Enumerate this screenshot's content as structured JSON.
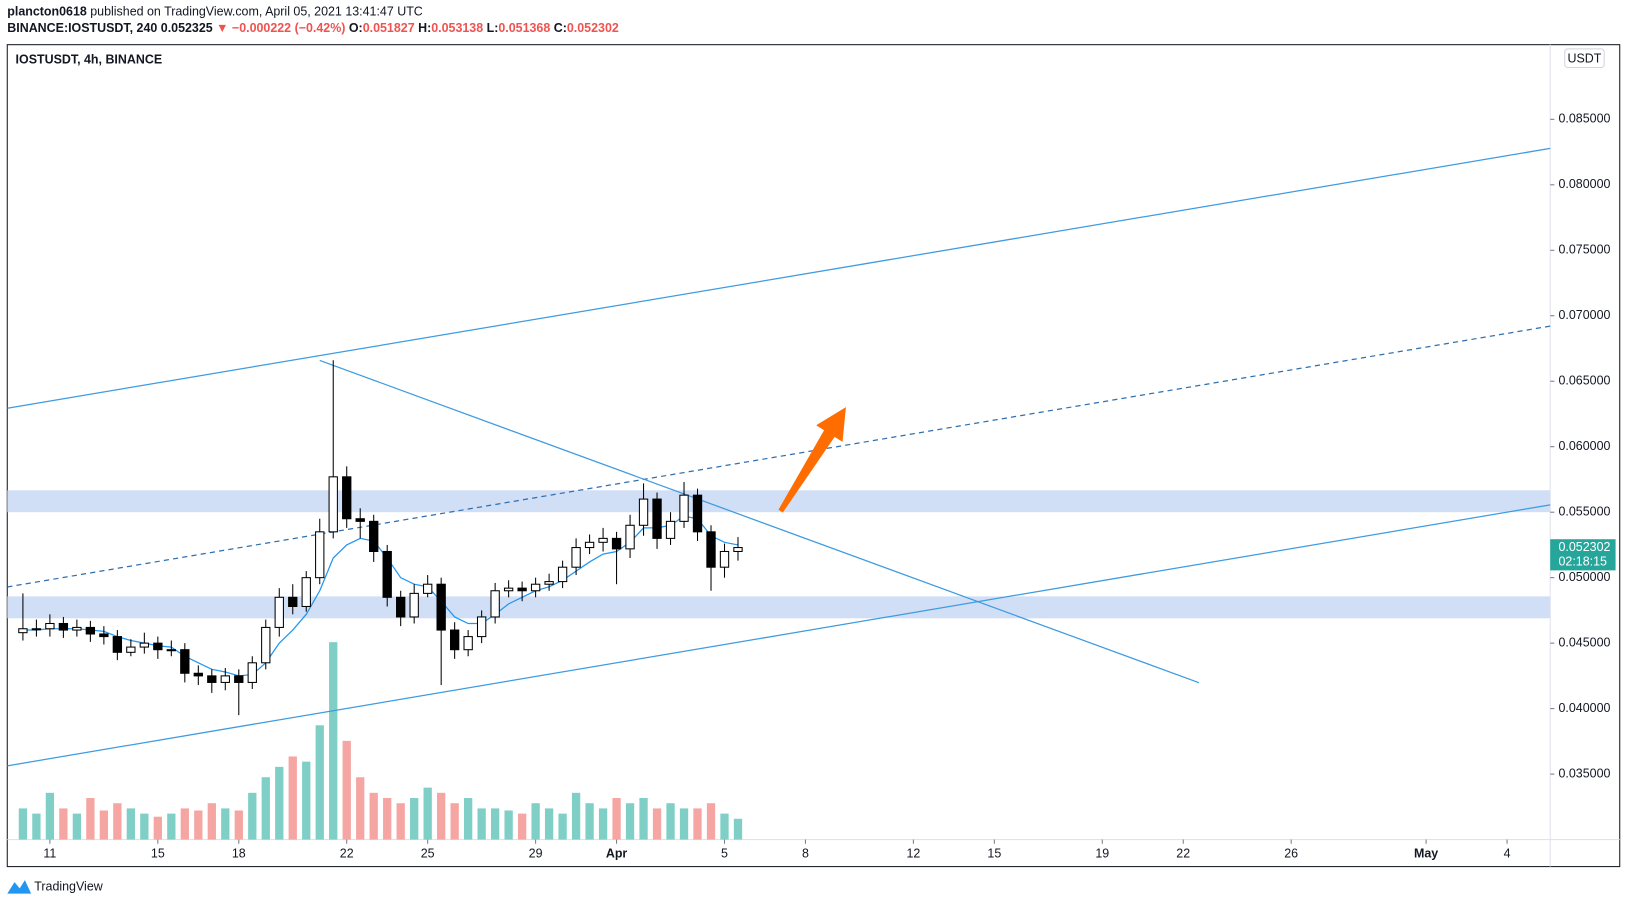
{
  "header": {
    "author": "plancton0618",
    "published": "published on TradingView.com, April 05, 2021 13:41:47 UTC",
    "symbol": "BINANCE:IOSTUSDT, 240",
    "last": "0.052325",
    "change": "▼ −0.000222 (−0.42%)",
    "ohlc": [
      {
        "label": "O:",
        "value": "0.051827"
      },
      {
        "label": "H:",
        "value": "0.053138"
      },
      {
        "label": "L:",
        "value": "0.051368"
      },
      {
        "label": "C:",
        "value": "0.052302"
      }
    ]
  },
  "chart_data": {
    "type": "candlestick",
    "title": "IOSTUSDT, 4h, BINANCE",
    "currency": "USDT",
    "x": [
      10,
      10.5,
      11,
      11.5,
      12,
      12.5,
      13,
      13.5,
      14,
      14.5,
      15,
      15.5,
      16,
      16.5,
      17,
      17.5,
      18,
      18.5,
      19,
      19.5,
      20,
      20.5,
      21,
      21.5,
      22,
      22.5,
      23,
      23.5,
      24,
      24.5,
      25,
      25.5,
      26,
      26.5,
      27,
      27.5,
      28,
      28.5,
      29,
      29.5,
      30,
      30.5,
      31,
      31.5,
      32,
      32.5,
      33,
      33.5,
      34,
      34.5,
      35,
      35.5,
      36,
      36.5
    ],
    "open": [
      0.0458,
      0.0461,
      0.0461,
      0.0465,
      0.046,
      0.0462,
      0.0457,
      0.0455,
      0.0443,
      0.0447,
      0.045,
      0.0445,
      0.0445,
      0.0427,
      0.0425,
      0.042,
      0.0425,
      0.042,
      0.0435,
      0.0462,
      0.0485,
      0.0478,
      0.05,
      0.0535,
      0.0577,
      0.0545,
      0.0543,
      0.052,
      0.0485,
      0.047,
      0.0488,
      0.0495,
      0.046,
      0.0445,
      0.0455,
      0.047,
      0.049,
      0.0492,
      0.049,
      0.0495,
      0.0497,
      0.0508,
      0.0523,
      0.0527,
      0.053,
      0.0522,
      0.054,
      0.056,
      0.053,
      0.0543,
      0.0563,
      0.0535,
      0.0508,
      0.052
    ],
    "high": [
      0.0488,
      0.0468,
      0.0472,
      0.047,
      0.0468,
      0.0467,
      0.0463,
      0.046,
      0.0453,
      0.0458,
      0.0455,
      0.0452,
      0.045,
      0.0433,
      0.043,
      0.0431,
      0.043,
      0.044,
      0.0468,
      0.0492,
      0.0495,
      0.0505,
      0.0545,
      0.0666,
      0.0585,
      0.0553,
      0.0548,
      0.0525,
      0.049,
      0.0495,
      0.0502,
      0.05,
      0.0466,
      0.046,
      0.0475,
      0.0496,
      0.0498,
      0.0497,
      0.05,
      0.0503,
      0.0513,
      0.053,
      0.0533,
      0.0538,
      0.0535,
      0.0548,
      0.0572,
      0.0565,
      0.055,
      0.0573,
      0.0568,
      0.054,
      0.0526,
      0.0531
    ],
    "low": [
      0.0452,
      0.0455,
      0.0455,
      0.0454,
      0.0455,
      0.0451,
      0.0449,
      0.0437,
      0.044,
      0.0442,
      0.0438,
      0.044,
      0.042,
      0.0418,
      0.0412,
      0.0414,
      0.0395,
      0.0415,
      0.043,
      0.0455,
      0.0472,
      0.0474,
      0.0495,
      0.053,
      0.0538,
      0.053,
      0.0512,
      0.0478,
      0.0463,
      0.0465,
      0.0485,
      0.0418,
      0.0438,
      0.044,
      0.045,
      0.0465,
      0.0485,
      0.0482,
      0.0485,
      0.049,
      0.0492,
      0.0502,
      0.0518,
      0.052,
      0.0495,
      0.0515,
      0.0532,
      0.0522,
      0.0525,
      0.0538,
      0.0528,
      0.049,
      0.05,
      0.0513
    ],
    "close": [
      0.0461,
      0.0461,
      0.0465,
      0.046,
      0.0462,
      0.0457,
      0.0455,
      0.0443,
      0.0447,
      0.045,
      0.0445,
      0.0445,
      0.0427,
      0.0425,
      0.042,
      0.0425,
      0.042,
      0.0435,
      0.0462,
      0.0485,
      0.0478,
      0.05,
      0.0535,
      0.0577,
      0.0545,
      0.0543,
      0.052,
      0.0485,
      0.047,
      0.0488,
      0.0495,
      0.046,
      0.0445,
      0.0455,
      0.047,
      0.049,
      0.0492,
      0.049,
      0.0495,
      0.0497,
      0.0508,
      0.0523,
      0.0527,
      0.053,
      0.0522,
      0.054,
      0.056,
      0.053,
      0.0543,
      0.0563,
      0.0535,
      0.0508,
      0.052,
      0.0523
    ],
    "volume": [
      30,
      25,
      45,
      30,
      25,
      40,
      28,
      35,
      30,
      25,
      22,
      25,
      30,
      28,
      35,
      30,
      28,
      45,
      60,
      70,
      80,
      75,
      110,
      190,
      95,
      60,
      45,
      40,
      35,
      40,
      50,
      45,
      35,
      40,
      30,
      30,
      28,
      25,
      35,
      30,
      25,
      45,
      35,
      30,
      40,
      35,
      40,
      30,
      35,
      30,
      30,
      35,
      25,
      20
    ],
    "ma": [
      0.046,
      0.046,
      0.0461,
      0.0461,
      0.0461,
      0.046,
      0.0459,
      0.0455,
      0.0452,
      0.045,
      0.0448,
      0.0447,
      0.044,
      0.0435,
      0.043,
      0.0428,
      0.0425,
      0.0426,
      0.0435,
      0.045,
      0.046,
      0.0472,
      0.049,
      0.0515,
      0.0525,
      0.053,
      0.0528,
      0.0515,
      0.05,
      0.0495,
      0.0493,
      0.0482,
      0.047,
      0.0465,
      0.0465,
      0.0472,
      0.048,
      0.0485,
      0.049,
      0.0493,
      0.0498,
      0.0505,
      0.0512,
      0.0518,
      0.052,
      0.0527,
      0.0538,
      0.0538,
      0.054,
      0.0547,
      0.0545,
      0.0532,
      0.0527,
      0.0525
    ],
    "up_color": "#ffffff",
    "down_color": "#000000",
    "volume_up_color": "#7fcfc7",
    "volume_down_color": "#f5a6a3",
    "ma_color": "#2196f3",
    "xlim": [
      9.42,
      66.6
    ],
    "ylim": [
      0.03,
      0.0907
    ],
    "xticks": [
      11,
      15,
      18,
      22,
      25,
      29,
      {
        "value": 32,
        "label": "Apr"
      },
      {
        "value": 36,
        "label": "5"
      },
      {
        "value": 39,
        "label": "8"
      },
      {
        "value": 43,
        "label": "12"
      },
      {
        "value": 46,
        "label": "15"
      },
      {
        "value": 50,
        "label": "19"
      },
      {
        "value": 53,
        "label": "22"
      },
      {
        "value": 57,
        "label": "26"
      },
      {
        "value": 62,
        "label": "May"
      },
      {
        "value": 65,
        "label": "4"
      }
    ],
    "yticks": [
      {
        "value": 0.035,
        "label": "0.035000"
      },
      {
        "value": 0.04,
        "label": "0.040000"
      },
      {
        "value": 0.045,
        "label": "0.045000"
      },
      {
        "value": 0.05,
        "label": "0.050000"
      },
      {
        "value": 0.055,
        "label": "0.055000"
      },
      {
        "value": 0.06,
        "label": "0.060000"
      },
      {
        "value": 0.065,
        "label": "0.065000"
      },
      {
        "value": 0.07,
        "label": "0.070000"
      },
      {
        "value": 0.075,
        "label": "0.075000"
      },
      {
        "value": 0.08,
        "label": "0.080000"
      },
      {
        "value": 0.085,
        "label": "0.085000"
      }
    ],
    "price_tag": {
      "value": 0.052302,
      "label": "0.052302",
      "countdown": "02:18:15",
      "color": "#26a69a"
    },
    "drawings": [
      {
        "kind": "line",
        "color": "#3d9be0",
        "points": [
          [
            9.42,
            0.06294
          ],
          [
            66.6,
            0.08278
          ]
        ]
      },
      {
        "kind": "dashed",
        "color": "#2f6fb0",
        "points": [
          [
            9.42,
            0.04929
          ],
          [
            66.6,
            0.06921
          ]
        ]
      },
      {
        "kind": "line",
        "color": "#3d9be0",
        "points": [
          [
            9.42,
            0.03563
          ],
          [
            66.6,
            0.05556
          ]
        ]
      },
      {
        "kind": "line",
        "color": "#3d9be0",
        "points": [
          [
            21.0,
            0.06659
          ],
          [
            53.58,
            0.04198
          ]
        ]
      },
      {
        "kind": "zone",
        "color": "#cddcf6",
        "points": [
          [
            9.42,
            0.05667
          ],
          [
            66.6,
            0.055
          ]
        ]
      },
      {
        "kind": "zone",
        "color": "#cddcf6",
        "points": [
          [
            9.42,
            0.04857
          ],
          [
            66.6,
            0.0469
          ]
        ]
      },
      {
        "kind": "arrow",
        "color": "#ff6d00",
        "points": [
          [
            38.08,
            0.05508
          ],
          [
            40.5,
            0.06302
          ]
        ]
      }
    ]
  },
  "footer": {
    "brand": "TradingView"
  }
}
